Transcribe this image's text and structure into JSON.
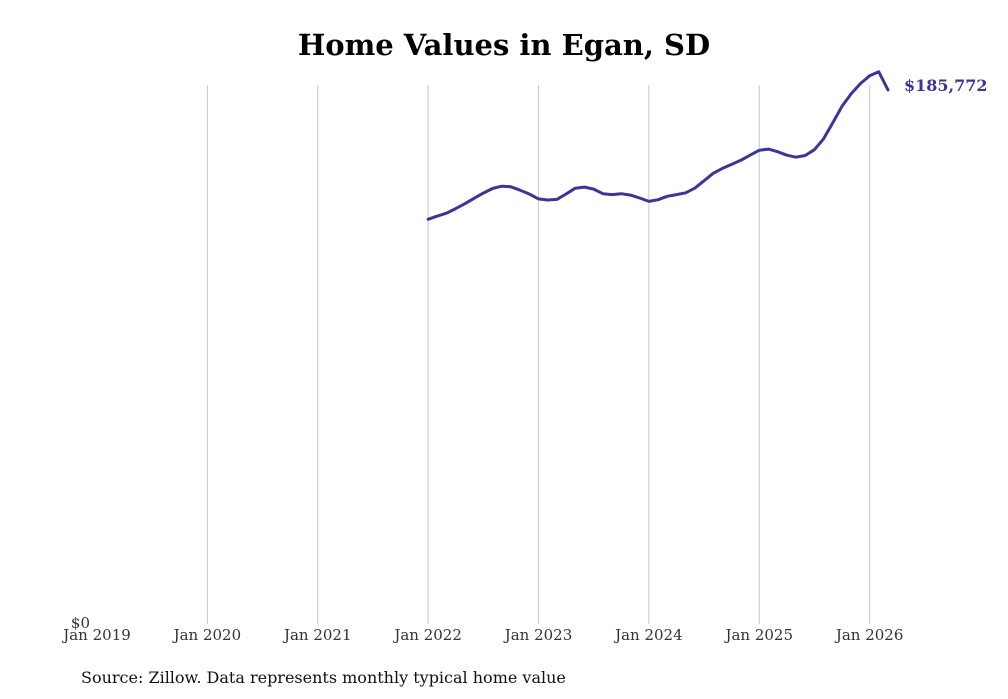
{
  "chart_data": {
    "type": "line",
    "title": "Home Values in Egan, SD",
    "xlabel": "",
    "ylabel": "",
    "x_ticks": [
      "Jan 2019",
      "Jan 2020",
      "Jan 2021",
      "Jan 2022",
      "Jan 2023",
      "Jan 2024",
      "Jan 2025",
      "Jan 2026"
    ],
    "y_ticks": [
      "$0"
    ],
    "xlim": [
      "2019-01",
      "2026-03"
    ],
    "ylim": [
      0,
      185772
    ],
    "grid": "vertical",
    "line_color": "#3b3595",
    "end_label": "$185,772",
    "series": [
      {
        "x": [
          "2022-01",
          "2022-02",
          "2022-03",
          "2022-04",
          "2022-05",
          "2022-06",
          "2022-07",
          "2022-08",
          "2022-09",
          "2022-10",
          "2022-11",
          "2022-12",
          "2023-01",
          "2023-02",
          "2023-03",
          "2023-04",
          "2023-05",
          "2023-06",
          "2023-07",
          "2023-08",
          "2023-09",
          "2023-10",
          "2023-11",
          "2023-12",
          "2024-01",
          "2024-02",
          "2024-03",
          "2024-04",
          "2024-05",
          "2024-06",
          "2024-07",
          "2024-08",
          "2024-09",
          "2024-10",
          "2024-11",
          "2024-12",
          "2025-01",
          "2025-02",
          "2025-03",
          "2025-04",
          "2025-05",
          "2025-06",
          "2025-07",
          "2025-08",
          "2025-09",
          "2025-10",
          "2025-11",
          "2025-12",
          "2026-01",
          "2026-02",
          "2026-03"
        ],
        "values": [
          140800,
          141900,
          142900,
          144500,
          146200,
          148100,
          149900,
          151500,
          152300,
          152100,
          150900,
          149600,
          147900,
          147500,
          147700,
          149600,
          151600,
          152000,
          151300,
          149700,
          149400,
          149700,
          149200,
          148200,
          147000,
          147600,
          148800,
          149400,
          150000,
          151600,
          154200,
          156800,
          158500,
          159900,
          161300,
          163100,
          164800,
          165200,
          164300,
          163100,
          162400,
          163000,
          165000,
          168800,
          174400,
          180100,
          184500,
          188000,
          190700,
          192100,
          185772
        ]
      }
    ]
  },
  "source": "Source: Zillow. Data represents monthly typical home value"
}
